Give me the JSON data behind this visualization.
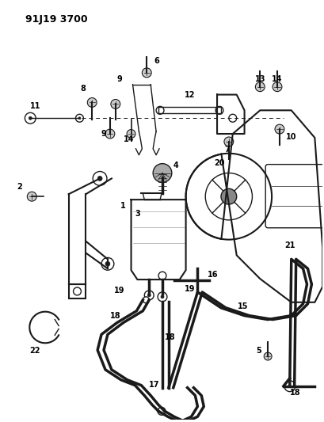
{
  "title": "91J19 3700",
  "bg": "#ffffff",
  "lc": "#1a1a1a",
  "fig_w": 4.1,
  "fig_h": 5.33,
  "dpi": 100
}
